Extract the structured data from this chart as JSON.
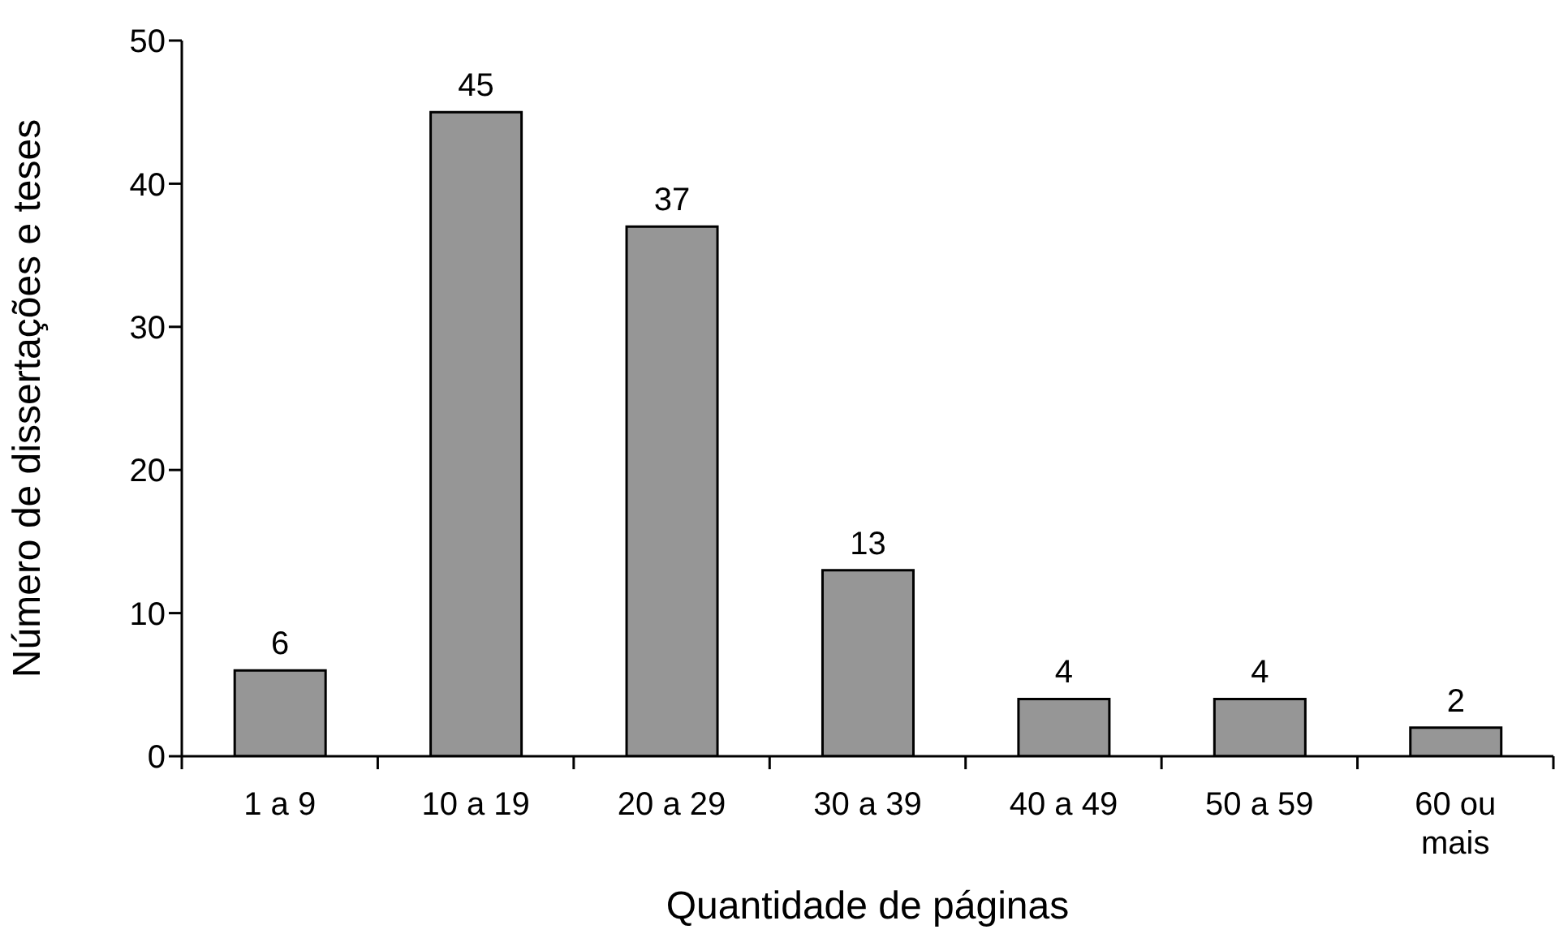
{
  "chart_data": {
    "type": "bar",
    "xlabel": "Quantidade de páginas",
    "ylabel": "Número de dissertações e teses",
    "categories": [
      "1 a 9",
      "10 a 19",
      "20 a 29",
      "30 a 39",
      "40 a 49",
      "50 a 59",
      "60 ou mais"
    ],
    "values": [
      6,
      45,
      37,
      13,
      4,
      4,
      2
    ],
    "color": "#969696",
    "ylim": [
      0,
      50
    ],
    "yticks": [
      0,
      10,
      20,
      30,
      40,
      50
    ],
    "data_labels": true
  }
}
